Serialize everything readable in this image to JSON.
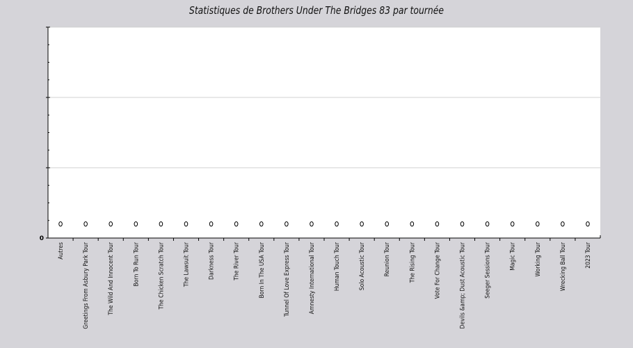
{
  "chart_data": {
    "type": "scatter",
    "title": "Statistiques de Brothers Under The Bridges 83 par tournée",
    "xlabel": "",
    "ylabel": "",
    "y_tick_labels": [
      "0"
    ],
    "ylim": [
      0,
      3
    ],
    "grid": true,
    "categories": [
      "Autres",
      "Greetings From Asbury Park Tour",
      "The Wild And Innocent Tour",
      "Born To Run Tour",
      "The Chicken Scratch Tour",
      "The Lawsuit Tour",
      "Darkness Tour",
      "The River Tour",
      "Born In The USA Tour",
      "Tunnel Of Love Express Tour",
      "Amnesty International Tour",
      "Human Touch Tour",
      "Solo Acoustic Tour",
      "Reunion Tour",
      "The Rising Tour",
      "Vote For Change Tour",
      "Devils &amp; Dust Acoustic Tour",
      "Seeger Sessions Tour",
      "Magic Tour",
      "Working Tour",
      "Wrecking Ball Tour",
      "2023 Tour"
    ],
    "values": [
      0.2,
      0.2,
      0.2,
      0.2,
      0.2,
      0.2,
      0.2,
      0.2,
      0.2,
      0.2,
      0.2,
      0.2,
      0.2,
      0.2,
      0.2,
      0.2,
      0.2,
      0.2,
      0.2,
      0.2,
      0.2,
      0.2
    ]
  }
}
